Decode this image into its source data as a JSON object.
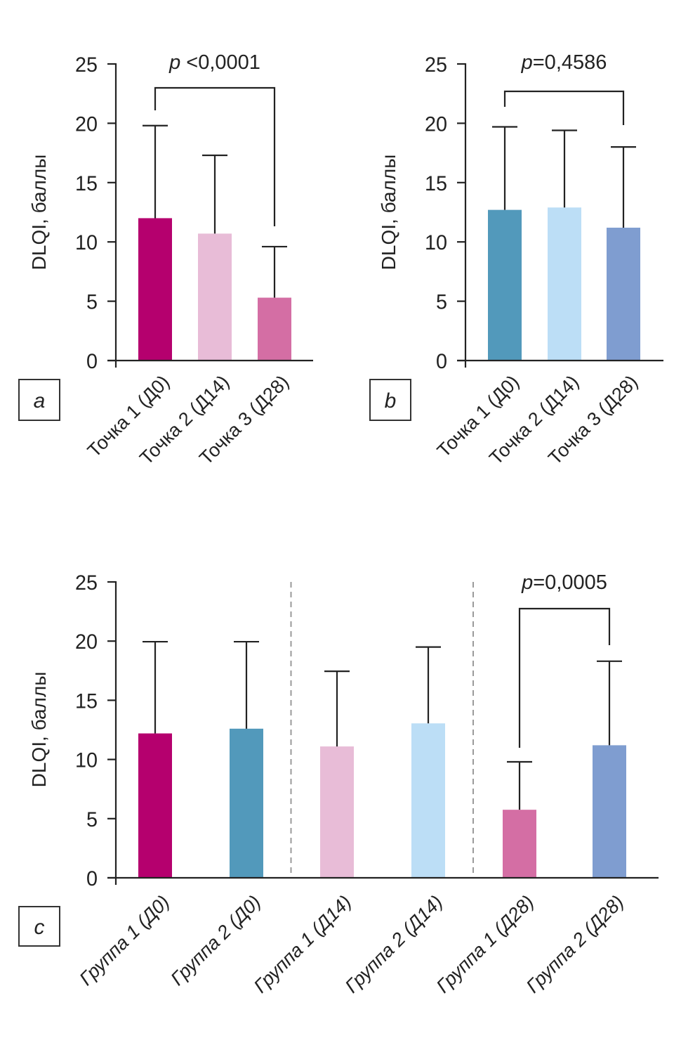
{
  "chart_data": [
    {
      "panel": "a",
      "type": "bar",
      "ylabel": "DLQI, баллы",
      "ylim": [
        0,
        25
      ],
      "yticks": [
        0,
        5,
        10,
        15,
        20,
        25
      ],
      "categories": [
        "Точка 1 (Д0)",
        "Точка 2 (Д14)",
        "Точка 3 (Д28)"
      ],
      "values": [
        12.0,
        10.7,
        5.3
      ],
      "error_upper": [
        19.8,
        17.3,
        9.6
      ],
      "colors": [
        "#b5006e",
        "#e8bcd7",
        "#d46ea4"
      ],
      "significance": [
        {
          "from": 0,
          "to": 2,
          "label_p": "p",
          "label_rest": " <0,0001"
        }
      ],
      "dividers": []
    },
    {
      "panel": "b",
      "type": "bar",
      "ylabel": "DLQI, баллы",
      "ylim": [
        0,
        25
      ],
      "yticks": [
        0,
        5,
        10,
        15,
        20,
        25
      ],
      "categories": [
        "Точка 1 (Д0)",
        "Точка 2 (Д14)",
        "Точка 3 (Д28)"
      ],
      "values": [
        12.7,
        12.9,
        11.2
      ],
      "error_upper": [
        19.7,
        19.4,
        18.0
      ],
      "colors": [
        "#5299bb",
        "#bcdef6",
        "#7f9dd0"
      ],
      "significance": [
        {
          "from": 0,
          "to": 2,
          "label_p": "p",
          "label_rest": "=0,4586"
        }
      ],
      "dividers": []
    },
    {
      "panel": "c",
      "type": "bar",
      "ylabel": "DLQI, баллы",
      "ylim": [
        0,
        25
      ],
      "yticks": [
        0,
        5,
        10,
        15,
        20,
        25
      ],
      "categories": [
        "Группа 1 (Д0)",
        "Группа 2 (Д0)",
        "Группа 1 (Д14)",
        "Группа 2 (Д14)",
        "Группа 1 (Д28)",
        "Группа 2 (Д28)"
      ],
      "values": [
        12.2,
        12.6,
        11.1,
        13.05,
        5.75,
        11.2
      ],
      "error_upper": [
        19.95,
        19.95,
        17.45,
        19.5,
        9.8,
        18.3
      ],
      "colors": [
        "#b5006e",
        "#5299bb",
        "#e8bcd7",
        "#bcdef6",
        "#d46ea4",
        "#7f9dd0"
      ],
      "significance": [
        {
          "from": 4,
          "to": 5,
          "label_p": "p",
          "label_rest": "=0,0005"
        }
      ],
      "dividers": [
        1.5,
        3.5
      ]
    }
  ],
  "panel_letters": [
    "a",
    "b",
    "c"
  ]
}
